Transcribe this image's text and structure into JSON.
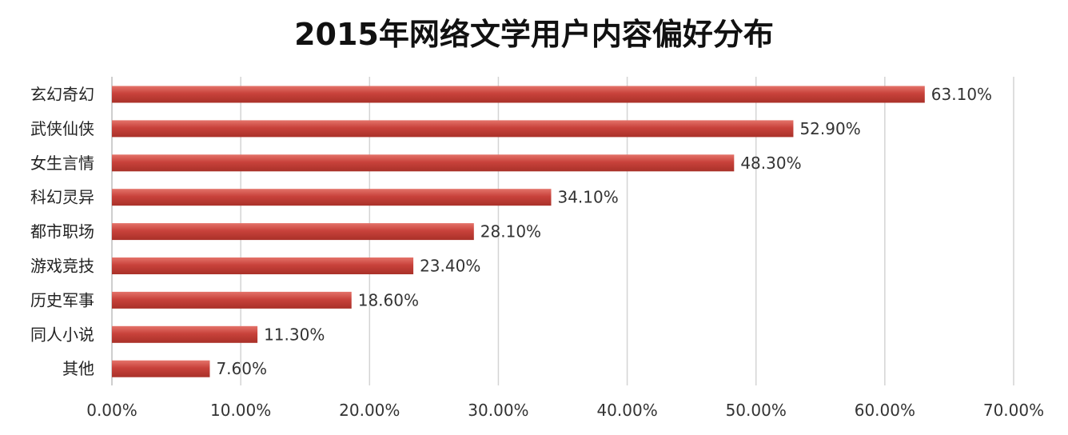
{
  "title": "2015年网络文学用户内容偏好分布",
  "chart_data": {
    "type": "bar",
    "orientation": "horizontal",
    "title": "2015年网络文学用户内容偏好分布",
    "xlabel": "",
    "ylabel": "",
    "categories": [
      "玄幻奇幻",
      "武侠仙侠",
      "女生言情",
      "科幻灵异",
      "都市职场",
      "游戏竞技",
      "历史军事",
      "同人小说",
      "其他"
    ],
    "values": [
      63.1,
      52.9,
      48.3,
      34.1,
      28.1,
      23.4,
      18.6,
      11.3,
      7.6
    ],
    "value_labels": [
      "63.10%",
      "52.90%",
      "48.30%",
      "34.10%",
      "28.10%",
      "23.40%",
      "18.60%",
      "11.30%",
      "7.60%"
    ],
    "xlim": [
      0,
      70
    ],
    "x_ticks": [
      0,
      10,
      20,
      30,
      40,
      50,
      60,
      70
    ],
    "x_tick_labels": [
      "0.00%",
      "10.00%",
      "20.00%",
      "30.00%",
      "40.00%",
      "50.00%",
      "60.00%",
      "70.00%"
    ],
    "grid": true,
    "legend": "none",
    "bar_color": "#c8423b",
    "bar_highlight_color": "#e4736a"
  }
}
